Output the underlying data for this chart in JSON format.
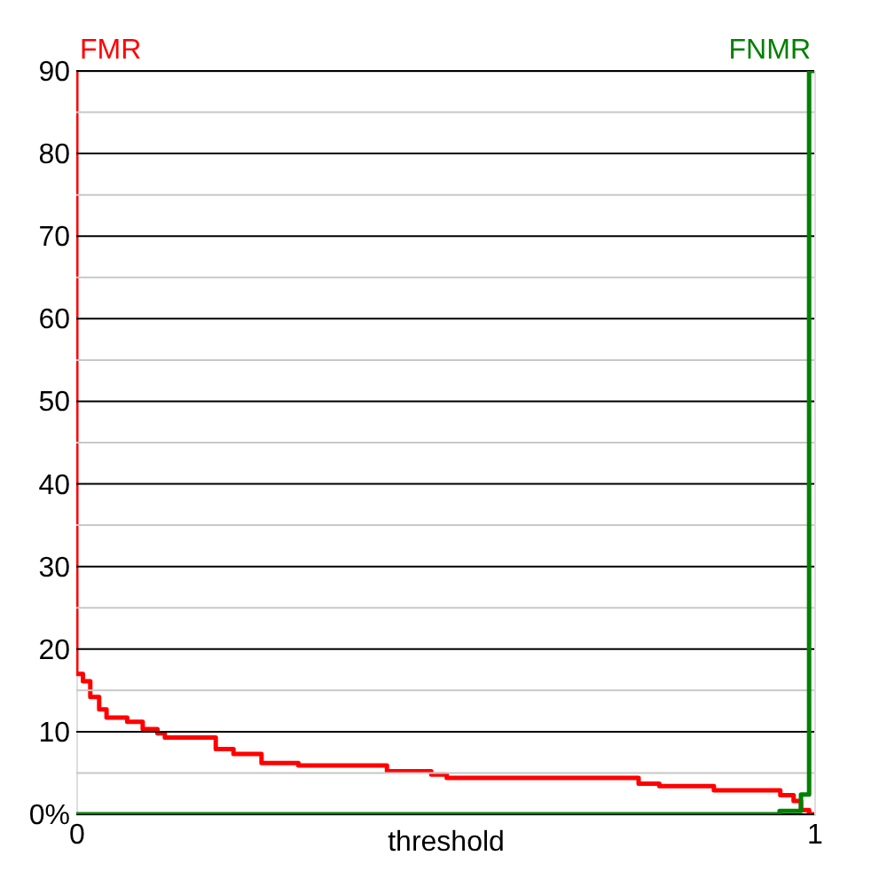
{
  "chart_data": {
    "type": "step",
    "xlabel": "threshold",
    "xlim": [
      0,
      1
    ],
    "xticks": [
      0,
      1
    ],
    "ylim": [
      0,
      90
    ],
    "yticks": [
      {
        "value": 0,
        "label": "0%"
      },
      {
        "value": 5,
        "label": null
      },
      10,
      {
        "value": 15,
        "label": null
      },
      20,
      {
        "value": 25,
        "label": null
      },
      30,
      {
        "value": 35,
        "label": null
      },
      40,
      {
        "value": 45,
        "label": null
      },
      50,
      {
        "value": 55,
        "label": null
      },
      60,
      {
        "value": 65,
        "label": null
      },
      70,
      {
        "value": 75,
        "label": null
      },
      80,
      {
        "value": 85,
        "label": null
      },
      90
    ],
    "grid": "y",
    "series": [
      {
        "name": "FMR",
        "color": "#ff0000",
        "x": [
          0,
          0,
          0.009,
          0.019,
          0.031,
          0.041,
          0.069,
          0.09,
          0.11,
          0.12,
          0.189,
          0.213,
          0.251,
          0.301,
          0.421,
          0.481,
          0.502,
          0.762,
          0.79,
          0.864,
          0.954,
          0.972,
          0.982,
          0.993,
          1
        ],
        "values": [
          90,
          17,
          16.1,
          14.2,
          12.7,
          11.7,
          11.2,
          10.3,
          9.8,
          9.3,
          7.9,
          7.3,
          6.2,
          5.9,
          5.2,
          4.8,
          4.4,
          3.7,
          3.4,
          2.9,
          2.3,
          1.6,
          0.5,
          0,
          0
        ]
      },
      {
        "name": "FNMR",
        "color": "#008000",
        "x": [
          0,
          0.953,
          0.982,
          0.993,
          1
        ],
        "values": [
          0,
          0.4,
          2.4,
          90,
          90
        ]
      }
    ]
  }
}
